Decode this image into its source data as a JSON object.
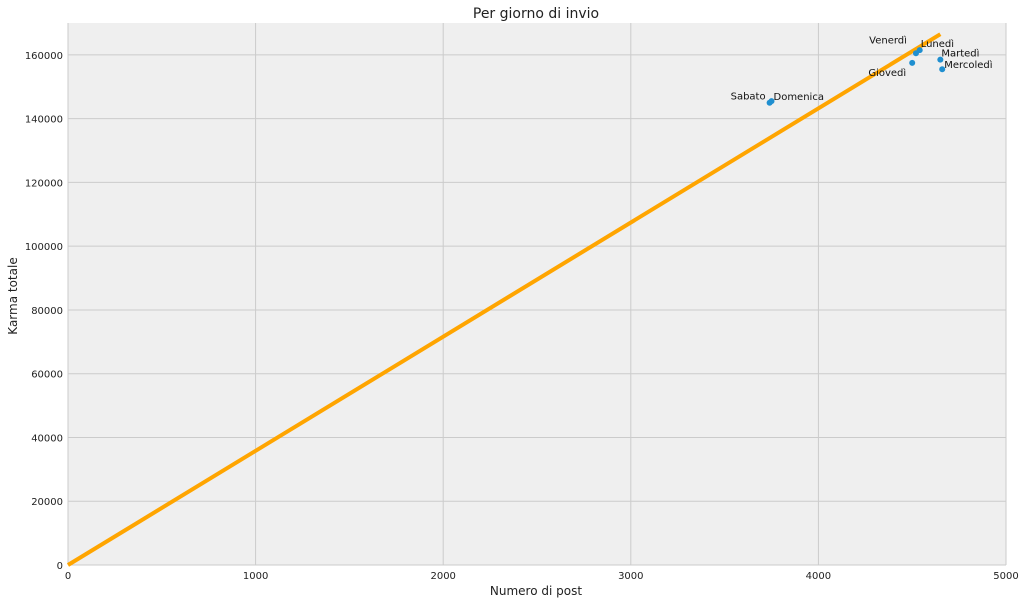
{
  "chart_data": {
    "type": "scatter",
    "title": "Per giorno di invio",
    "xlabel": "Numero di post",
    "ylabel": "Karma totale",
    "xlim": [
      0,
      5000
    ],
    "ylim": [
      0,
      170000
    ],
    "x_ticks": [
      "0",
      "1000",
      "2000",
      "3000",
      "4000",
      "5000"
    ],
    "y_ticks": [
      "0",
      "20000",
      "40000",
      "60000",
      "80000",
      "100000",
      "120000",
      "140000",
      "160000"
    ],
    "grid": true,
    "points": [
      {
        "label": "Lunedì",
        "x": 4540,
        "y": 161500
      },
      {
        "label": "Martedì",
        "x": 4650,
        "y": 158500
      },
      {
        "label": "Mercoledì",
        "x": 4660,
        "y": 155500
      },
      {
        "label": "Giovedì",
        "x": 4500,
        "y": 157500
      },
      {
        "label": "Venerdì",
        "x": 4520,
        "y": 160500
      },
      {
        "label": "Sabato",
        "x": 3740,
        "y": 145000
      },
      {
        "label": "Domenica",
        "x": 3750,
        "y": 145500
      }
    ],
    "trend_line": {
      "x": [
        0,
        4650
      ],
      "y": [
        0,
        166500
      ]
    },
    "colors": {
      "points": "#1f8fd0",
      "trend": "#ffa500",
      "plot_bg": "#efefef",
      "grid": "#cbcbcb"
    }
  }
}
